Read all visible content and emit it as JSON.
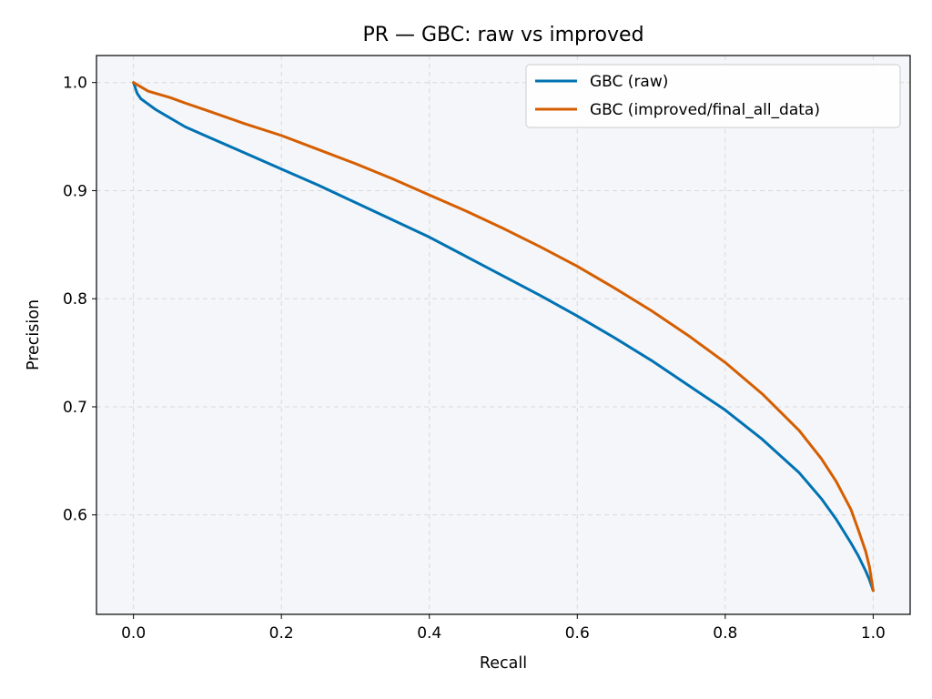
{
  "chart_data": {
    "type": "line",
    "title": "PR — GBC: raw vs improved",
    "xlabel": "Recall",
    "ylabel": "Precision",
    "xlim": [
      -0.05,
      1.05
    ],
    "ylim": [
      0.508,
      1.025
    ],
    "x_ticks": [
      0.0,
      0.2,
      0.4,
      0.6,
      0.8,
      1.0
    ],
    "y_ticks": [
      0.6,
      0.7,
      0.8,
      0.9,
      1.0
    ],
    "x_tick_labels": [
      "0.0",
      "0.2",
      "0.4",
      "0.6",
      "0.8",
      "1.0"
    ],
    "y_tick_labels": [
      "0.6",
      "0.7",
      "0.8",
      "0.9",
      "1.0"
    ],
    "grid": true,
    "legend_position": "upper right",
    "series": [
      {
        "name": "GBC (raw)",
        "color": "#0072b2",
        "x": [
          0.0,
          0.005,
          0.01,
          0.02,
          0.03,
          0.05,
          0.07,
          0.1,
          0.15,
          0.2,
          0.25,
          0.3,
          0.35,
          0.4,
          0.45,
          0.5,
          0.55,
          0.6,
          0.65,
          0.7,
          0.75,
          0.8,
          0.85,
          0.9,
          0.93,
          0.95,
          0.97,
          0.98,
          0.99,
          0.995,
          1.0
        ],
        "y": [
          1.0,
          0.99,
          0.985,
          0.98,
          0.975,
          0.967,
          0.959,
          0.95,
          0.935,
          0.92,
          0.905,
          0.889,
          0.873,
          0.857,
          0.839,
          0.821,
          0.803,
          0.784,
          0.764,
          0.743,
          0.72,
          0.697,
          0.67,
          0.639,
          0.615,
          0.596,
          0.574,
          0.562,
          0.548,
          0.54,
          0.53
        ]
      },
      {
        "name": "GBC (improved/final_all_data)",
        "color": "#d55e00",
        "x": [
          0.0,
          0.01,
          0.02,
          0.03,
          0.05,
          0.07,
          0.1,
          0.15,
          0.2,
          0.25,
          0.3,
          0.35,
          0.4,
          0.45,
          0.5,
          0.55,
          0.6,
          0.65,
          0.7,
          0.75,
          0.8,
          0.85,
          0.9,
          0.93,
          0.95,
          0.97,
          0.98,
          0.99,
          0.995,
          1.0
        ],
        "y": [
          1.0,
          0.996,
          0.992,
          0.99,
          0.986,
          0.981,
          0.974,
          0.962,
          0.951,
          0.938,
          0.925,
          0.911,
          0.896,
          0.881,
          0.865,
          0.848,
          0.83,
          0.81,
          0.789,
          0.766,
          0.741,
          0.712,
          0.678,
          0.652,
          0.631,
          0.605,
          0.586,
          0.566,
          0.552,
          0.53
        ]
      }
    ]
  }
}
